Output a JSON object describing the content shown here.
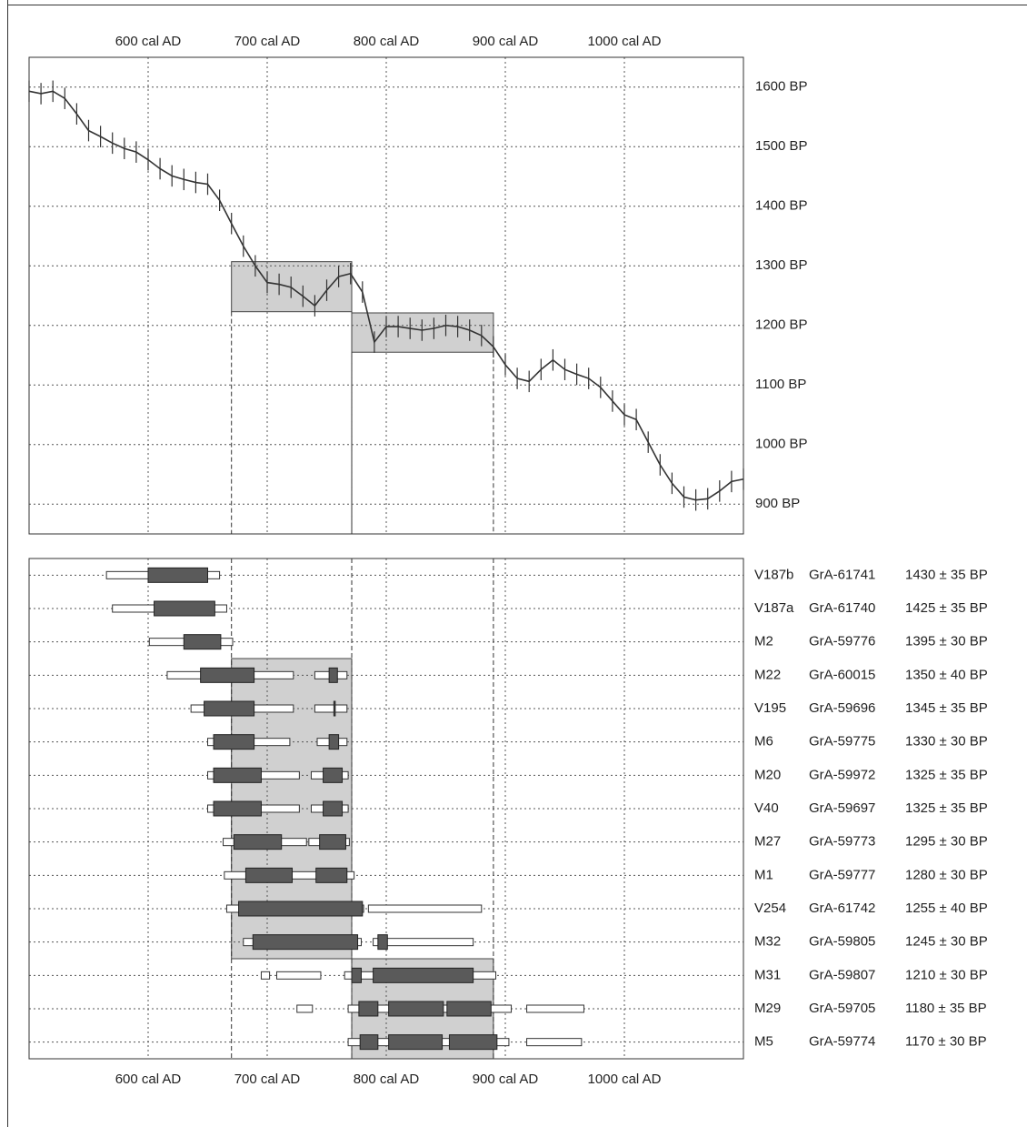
{
  "chart_data": [
    {
      "type": "line",
      "x": [
        500,
        510,
        520,
        530,
        540,
        550,
        560,
        570,
        580,
        590,
        600,
        610,
        620,
        630,
        640,
        650,
        660,
        670,
        680,
        690,
        700,
        710,
        720,
        730,
        740,
        750,
        760,
        770,
        780,
        790,
        800,
        810,
        820,
        830,
        840,
        850,
        860,
        870,
        880,
        890,
        900,
        910,
        920,
        930,
        940,
        950,
        960,
        970,
        980,
        990,
        1000,
        1010,
        1020,
        1030,
        1040,
        1050,
        1060,
        1070,
        1080,
        1090,
        1100
      ],
      "values": [
        1593,
        1589,
        1593,
        1581,
        1555,
        1527,
        1517,
        1506,
        1497,
        1491,
        1478,
        1463,
        1451,
        1445,
        1440,
        1437,
        1410,
        1371,
        1333,
        1300,
        1272,
        1269,
        1264,
        1249,
        1233,
        1259,
        1282,
        1287,
        1256,
        1172,
        1198,
        1198,
        1195,
        1192,
        1195,
        1200,
        1198,
        1192,
        1183,
        1164,
        1134,
        1111,
        1106,
        1126,
        1142,
        1126,
        1118,
        1111,
        1096,
        1073,
        1050,
        1042,
        1004,
        966,
        935,
        912,
        907,
        909,
        922,
        938,
        942
      ],
      "error": 18,
      "color": "#333333",
      "xlim": [
        500,
        1100
      ],
      "xticks": [
        {
          "value": 600,
          "label": "600 cal AD"
        },
        {
          "value": 700,
          "label": "700 cal AD"
        },
        {
          "value": 800,
          "label": "800 cal AD"
        },
        {
          "value": 900,
          "label": "900 cal AD"
        },
        {
          "value": 1000,
          "label": "1000 cal AD"
        }
      ],
      "ylim": [
        850,
        1650
      ],
      "yticks": [
        {
          "value": 900,
          "label": "900 BP"
        },
        {
          "value": 1000,
          "label": "1000 BP"
        },
        {
          "value": 1100,
          "label": "1100 BP"
        },
        {
          "value": 1200,
          "label": "1200 BP"
        },
        {
          "value": 1300,
          "label": "1300 BP"
        },
        {
          "value": 1400,
          "label": "1400 BP"
        },
        {
          "value": 1500,
          "label": "1500 BP"
        },
        {
          "value": 1600,
          "label": "1600 BP"
        }
      ],
      "shades": [
        {
          "x": [
            670,
            771
          ],
          "y": [
            1223,
            1307
          ]
        },
        {
          "x": [
            771,
            890
          ],
          "y": [
            1155,
            1221
          ]
        }
      ],
      "grid": true
    },
    {
      "type": "range",
      "xlim": [
        500,
        1100
      ],
      "xticks": [
        {
          "value": 600,
          "label": "600 cal AD"
        },
        {
          "value": 700,
          "label": "700 cal AD"
        },
        {
          "value": 800,
          "label": "800 cal AD"
        },
        {
          "value": 900,
          "label": "900 cal AD"
        },
        {
          "value": 1000,
          "label": "1000 cal AD"
        }
      ],
      "shades": [
        {
          "x": [
            670,
            771
          ],
          "rows": [
            3,
            11
          ]
        },
        {
          "x": [
            771,
            890
          ],
          "rows": [
            12,
            14
          ]
        }
      ],
      "samples": [
        {
          "name": "V187b",
          "lab": "GrA-61741",
          "date": "1430 ± 35 BP",
          "p95": [
            [
              565,
              660
            ]
          ],
          "p68": [
            [
              600,
              650
            ]
          ]
        },
        {
          "name": "V187a",
          "lab": "GrA-61740",
          "date": "1425 ± 35 BP",
          "p95": [
            [
              570,
              666
            ]
          ],
          "p68": [
            [
              605,
              656
            ]
          ]
        },
        {
          "name": "M2",
          "lab": "GrA-59776",
          "date": "1395 ± 30 BP",
          "p95": [
            [
              601,
              671
            ]
          ],
          "p68": [
            [
              630,
              661
            ]
          ]
        },
        {
          "name": "M22",
          "lab": "GrA-60015",
          "date": "1350 ± 40 BP",
          "p95": [
            [
              616,
              722
            ],
            [
              740,
              767
            ]
          ],
          "p68": [
            [
              644,
              689
            ],
            [
              752,
              759
            ]
          ]
        },
        {
          "name": "V195",
          "lab": "GrA-59696",
          "date": "1345 ± 35 BP",
          "p95": [
            [
              636,
              722
            ],
            [
              740,
              767
            ]
          ],
          "p68": [
            [
              647,
              689
            ],
            [
              756,
              757
            ]
          ]
        },
        {
          "name": "M6",
          "lab": "GrA-59775",
          "date": "1330 ± 30 BP",
          "p95": [
            [
              650,
              719
            ],
            [
              742,
              767
            ]
          ],
          "p68": [
            [
              655,
              689
            ],
            [
              752,
              760
            ]
          ]
        },
        {
          "name": "M20",
          "lab": "GrA-59972",
          "date": "1325 ± 35 BP",
          "p95": [
            [
              650,
              727
            ],
            [
              737,
              768
            ]
          ],
          "p68": [
            [
              655,
              695
            ],
            [
              747,
              763
            ]
          ]
        },
        {
          "name": "V40",
          "lab": "GrA-59697",
          "date": "1325 ± 35 BP",
          "p95": [
            [
              650,
              727
            ],
            [
              737,
              768
            ]
          ],
          "p68": [
            [
              655,
              695
            ],
            [
              747,
              763
            ]
          ]
        },
        {
          "name": "M27",
          "lab": "GrA-59773",
          "date": "1295 ± 30 BP",
          "p95": [
            [
              663,
              733
            ],
            [
              735,
              769
            ]
          ],
          "p68": [
            [
              672,
              712
            ],
            [
              744,
              766
            ]
          ]
        },
        {
          "name": "M1",
          "lab": "GrA-59777",
          "date": "1280 ± 30 BP",
          "p95": [
            [
              664,
              773
            ]
          ],
          "p68": [
            [
              682,
              721
            ],
            [
              741,
              767
            ]
          ]
        },
        {
          "name": "V254",
          "lab": "GrA-61742",
          "date": "1255 ± 40 BP",
          "p95": [
            [
              666,
              781
            ],
            [
              785,
              880
            ]
          ],
          "p68": [
            [
              676,
              780
            ]
          ]
        },
        {
          "name": "M32",
          "lab": "GrA-59805",
          "date": "1245 ± 30 BP",
          "p95": [
            [
              680,
              779
            ],
            [
              789,
              873
            ]
          ],
          "p68": [
            [
              688,
              776
            ],
            [
              793,
              801
            ]
          ]
        },
        {
          "name": "M31",
          "lab": "GrA-59807",
          "date": "1210 ± 30 BP",
          "p95": [
            [
              695,
              702
            ],
            [
              708,
              745
            ],
            [
              765,
              892
            ]
          ],
          "p68": [
            [
              771,
              779
            ],
            [
              789,
              873
            ]
          ]
        },
        {
          "name": "M29",
          "lab": "GrA-59705",
          "date": "1180 ± 35 BP",
          "p95": [
            [
              725,
              738
            ],
            [
              768,
              905
            ],
            [
              918,
              966
            ]
          ],
          "p68": [
            [
              777,
              793
            ],
            [
              802,
              848
            ],
            [
              851,
              888
            ]
          ]
        },
        {
          "name": "M5",
          "lab": "GrA-59774",
          "date": "1170 ± 30 BP",
          "p95": [
            [
              768,
              903
            ],
            [
              918,
              964
            ]
          ],
          "p68": [
            [
              778,
              793
            ],
            [
              802,
              847
            ],
            [
              853,
              893
            ]
          ]
        }
      ]
    }
  ]
}
